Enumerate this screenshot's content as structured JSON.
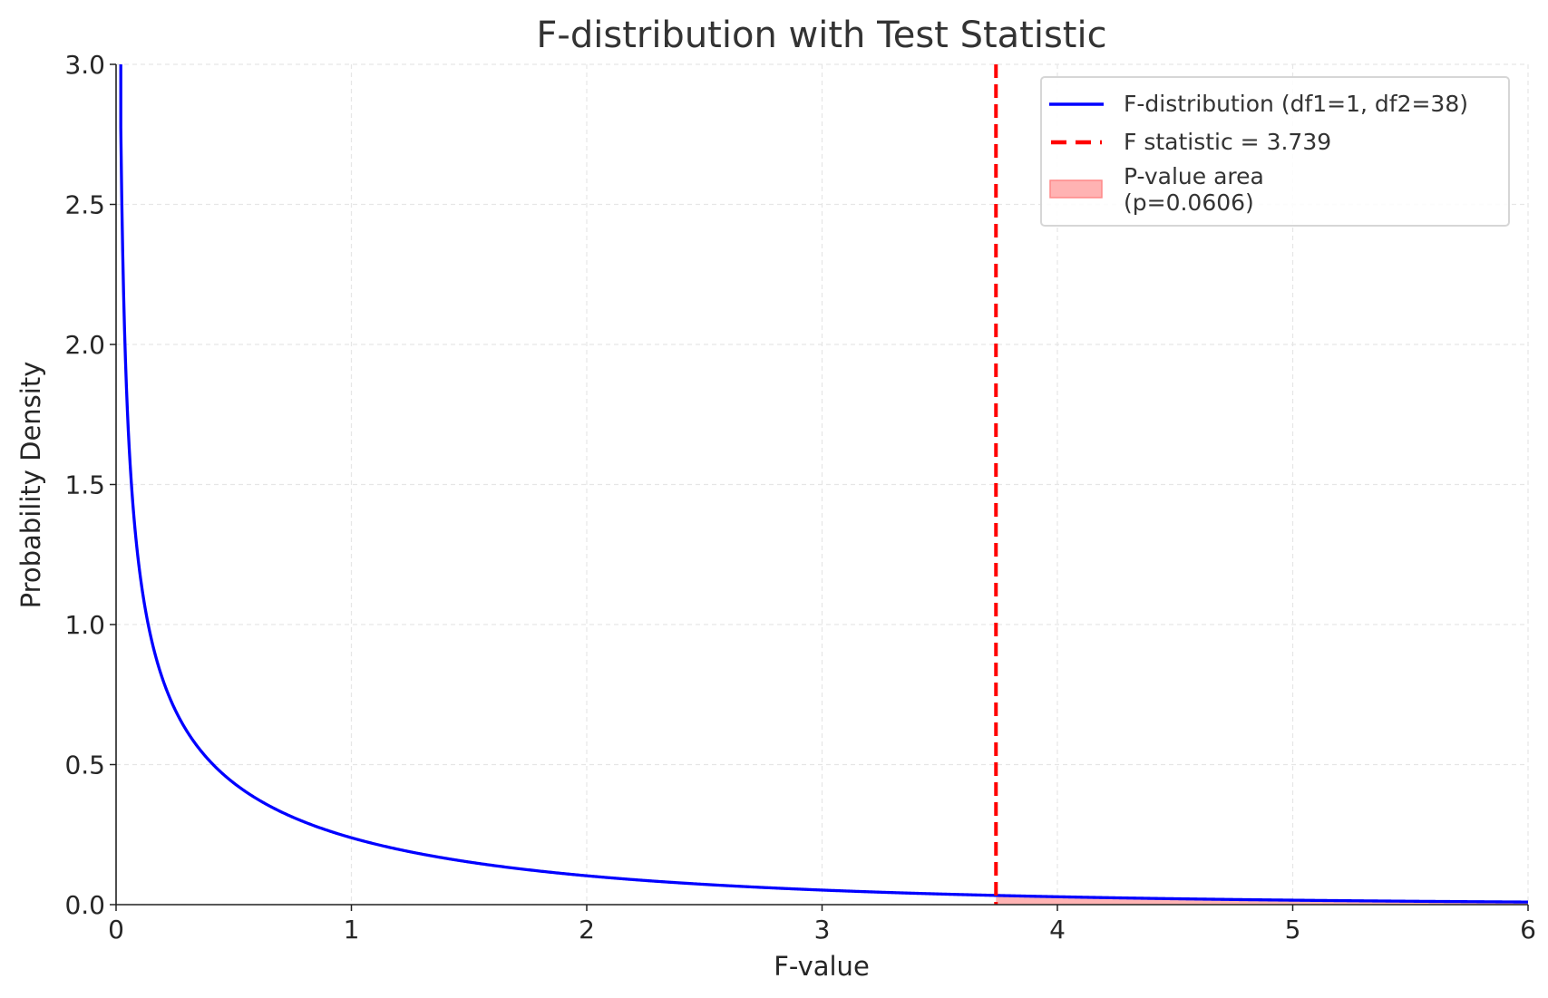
{
  "chart_data": {
    "type": "line",
    "title": "F-distribution with Test Statistic",
    "xlabel": "F-value",
    "ylabel": "Probability Density",
    "xlim": [
      0,
      6
    ],
    "ylim": [
      0,
      3
    ],
    "xticks": [
      "0",
      "1",
      "2",
      "3",
      "4",
      "5",
      "6"
    ],
    "yticks": [
      "0.0",
      "0.5",
      "1.0",
      "1.5",
      "2.0",
      "2.5",
      "3.0"
    ],
    "grid": true,
    "legend_position": "top-right",
    "distribution": {
      "name": "F-distribution (df1=1, df2=38)",
      "df1": 1,
      "df2": 38,
      "color": "#0000ff"
    },
    "f_statistic": {
      "name": "F statistic = 3.739",
      "value": 3.739,
      "color": "#ff0000",
      "style": "dashed"
    },
    "p_value_area": {
      "name_line1": "P-value area",
      "name_line2": "(p=0.0606)",
      "p": 0.0606,
      "from": 3.739,
      "color": "#ff9999"
    }
  }
}
